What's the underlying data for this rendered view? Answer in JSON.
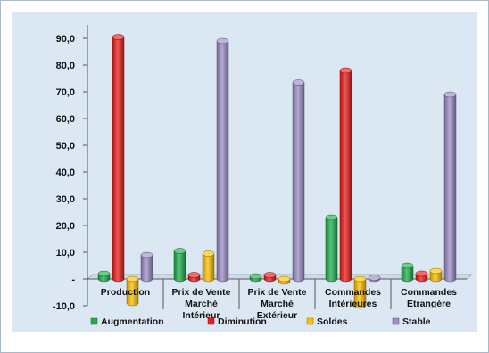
{
  "chart_data": {
    "type": "bar",
    "title": "",
    "xlabel": "",
    "ylabel": "",
    "categories": [
      [
        "Production"
      ],
      [
        "Prix de Vente",
        "Marché",
        "Intérieur"
      ],
      [
        "Prix de Vente",
        "Marché",
        "Extérieur"
      ],
      [
        "Commandes",
        "Intérieures"
      ],
      [
        "Commandes",
        "Etrangère"
      ]
    ],
    "series": [
      {
        "name": "Augmentation",
        "color": "#1fb04c",
        "values": [
          2.0,
          10.5,
          1.0,
          23.0,
          5.0
        ]
      },
      {
        "name": "Diminution",
        "color": "#ee1c1c",
        "values": [
          90.5,
          1.5,
          1.5,
          78.0,
          2.0
        ]
      },
      {
        "name": "Soldes",
        "color": "#ffc000",
        "values": [
          -9.0,
          9.5,
          -1.0,
          -10.0,
          3.0
        ]
      },
      {
        "name": "Stable",
        "color": "#9b8dc5",
        "values": [
          9.0,
          89.0,
          73.5,
          0.5,
          69.0
        ]
      }
    ],
    "yticks": [
      {
        "value": 90,
        "label": "90,0"
      },
      {
        "value": 80,
        "label": "80,0"
      },
      {
        "value": 70,
        "label": "70,0"
      },
      {
        "value": 60,
        "label": "60,0"
      },
      {
        "value": 50,
        "label": "50,0"
      },
      {
        "value": 40,
        "label": "40,0"
      },
      {
        "value": 30,
        "label": "30,0"
      },
      {
        "value": 20,
        "label": "20,0"
      },
      {
        "value": 10,
        "label": "10,0"
      },
      {
        "value": 0,
        "label": "-"
      },
      {
        "value": -10,
        "label": "-10,0"
      }
    ],
    "ylim": [
      -10,
      95
    ],
    "grid": false,
    "legend_position": "bottom",
    "style": "3d-cylinder"
  }
}
